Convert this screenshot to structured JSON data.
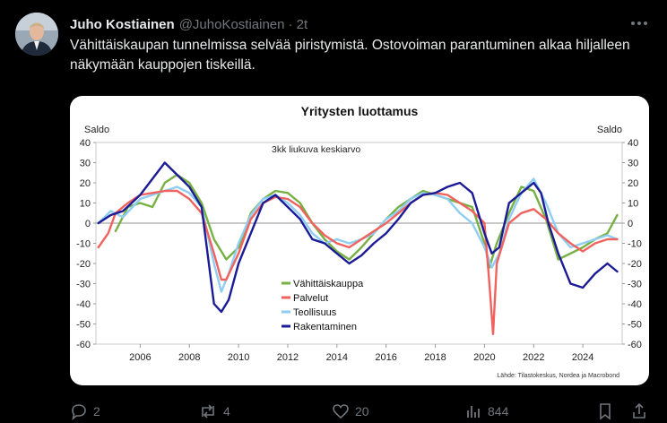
{
  "tweet": {
    "author_name": "Juho Kostiainen",
    "author_handle": "@JuhoKostiainen",
    "time": "· 2t",
    "text": "Vähittäiskaupan tunnelmissa selvää piristymistä. Ostovoiman parantuminen alkaa hiljalleen näkymään kauppojen tiskeillä."
  },
  "actions": {
    "replies": "2",
    "reposts": "4",
    "likes": "20",
    "views": "844"
  },
  "colors": {
    "background": "#000000",
    "text": "#e7e9ea",
    "muted": "#71767b",
    "retail": "#77b043",
    "services": "#f0625e",
    "industry": "#8fcdf3",
    "construction": "#1b1b96"
  },
  "icons": [
    "more-icon",
    "reply-icon",
    "repost-icon",
    "like-icon",
    "views-icon",
    "bookmark-icon",
    "share-icon"
  ],
  "chart_data": {
    "type": "line",
    "title": "Yritysten luottamus",
    "annotation": "3kk liukuva keskiarvo",
    "ylabel_left": "Saldo",
    "ylabel_right": "Saldo",
    "source": "Lähde: Tilastokeskus, Nordea ja Macrobond",
    "ylim": [
      -60,
      40
    ],
    "xlim": [
      2004.2,
      2025.6
    ],
    "yticks": [
      40,
      30,
      20,
      10,
      0,
      -10,
      -20,
      -30,
      -40,
      -50,
      -60
    ],
    "xticks": [
      "2006",
      "2008",
      "2010",
      "2012",
      "2014",
      "2016",
      "2018",
      "2020",
      "2022",
      "2024"
    ],
    "legend_position": "center",
    "series": [
      {
        "name": "Vähittäiskauppa",
        "color": "#77b043",
        "x": [
          2005.0,
          2005.5,
          2006.0,
          2006.5,
          2007.0,
          2007.5,
          2008.0,
          2008.5,
          2009.0,
          2009.5,
          2010.0,
          2010.5,
          2011.0,
          2011.5,
          2012.0,
          2012.5,
          2013.0,
          2013.5,
          2014.0,
          2014.5,
          2015.0,
          2015.5,
          2016.0,
          2016.5,
          2017.0,
          2017.5,
          2018.0,
          2018.5,
          2019.0,
          2019.5,
          2020.0,
          2020.2,
          2020.5,
          2021.0,
          2021.5,
          2022.0,
          2022.5,
          2023.0,
          2023.5,
          2024.0,
          2024.5,
          2025.0,
          2025.4
        ],
        "y": [
          -4,
          8,
          10,
          8,
          20,
          24,
          20,
          10,
          -8,
          -18,
          -12,
          5,
          12,
          16,
          15,
          10,
          0,
          -8,
          -14,
          -18,
          -12,
          -5,
          2,
          8,
          12,
          16,
          14,
          12,
          10,
          8,
          -10,
          -22,
          -10,
          5,
          18,
          16,
          2,
          -18,
          -15,
          -12,
          -8,
          -5,
          4
        ]
      },
      {
        "name": "Palvelut",
        "color": "#f0625e",
        "x": [
          2004.3,
          2004.7,
          2005.0,
          2005.5,
          2006.0,
          2006.5,
          2007.0,
          2007.5,
          2008.0,
          2008.5,
          2009.0,
          2009.3,
          2009.5,
          2010.0,
          2010.5,
          2011.0,
          2011.5,
          2012.0,
          2012.5,
          2013.0,
          2013.5,
          2014.0,
          2014.5,
          2015.0,
          2015.5,
          2016.0,
          2016.5,
          2017.0,
          2017.5,
          2018.0,
          2018.5,
          2019.0,
          2019.5,
          2020.0,
          2020.2,
          2020.35,
          2020.5,
          2021.0,
          2021.5,
          2022.0,
          2022.5,
          2023.0,
          2023.5,
          2024.0,
          2024.5,
          2025.0,
          2025.4
        ],
        "y": [
          -12,
          -5,
          5,
          10,
          14,
          15,
          16,
          16,
          12,
          5,
          -15,
          -28,
          -28,
          -15,
          2,
          10,
          13,
          12,
          8,
          0,
          -6,
          -10,
          -12,
          -8,
          -4,
          0,
          5,
          10,
          14,
          15,
          14,
          10,
          6,
          0,
          -30,
          -55,
          -20,
          0,
          5,
          7,
          2,
          -5,
          -10,
          -14,
          -10,
          -8,
          -8
        ]
      },
      {
        "name": "Teollisuus",
        "color": "#8fcdf3",
        "x": [
          2004.3,
          2004.8,
          2005.3,
          2006.0,
          2006.5,
          2007.0,
          2007.5,
          2008.0,
          2008.5,
          2009.0,
          2009.3,
          2009.6,
          2010.0,
          2010.5,
          2011.0,
          2011.5,
          2012.0,
          2012.5,
          2013.0,
          2013.5,
          2014.0,
          2014.5,
          2015.0,
          2015.5,
          2016.0,
          2016.5,
          2017.0,
          2017.5,
          2018.0,
          2018.5,
          2019.0,
          2019.5,
          2020.0,
          2020.3,
          2020.6,
          2021.0,
          2021.5,
          2022.0,
          2022.5,
          2023.0,
          2023.5,
          2024.0,
          2024.5,
          2025.0,
          2025.4
        ],
        "y": [
          0,
          6,
          3,
          12,
          14,
          16,
          18,
          15,
          8,
          -20,
          -34,
          -25,
          -10,
          4,
          12,
          14,
          10,
          4,
          -5,
          -10,
          -8,
          -10,
          -8,
          -5,
          2,
          6,
          12,
          15,
          14,
          12,
          5,
          0,
          -12,
          -22,
          -15,
          2,
          15,
          22,
          10,
          -5,
          -12,
          -10,
          -8,
          -6,
          -8
        ]
      },
      {
        "name": "Rakentaminen",
        "color": "#1b1b96",
        "x": [
          2004.3,
          2004.8,
          2005.3,
          2006.0,
          2006.5,
          2007.0,
          2007.5,
          2008.0,
          2008.5,
          2009.0,
          2009.3,
          2009.6,
          2010.0,
          2010.5,
          2011.0,
          2011.5,
          2012.0,
          2012.5,
          2013.0,
          2013.5,
          2014.0,
          2014.5,
          2015.0,
          2015.5,
          2016.0,
          2016.5,
          2017.0,
          2017.5,
          2018.0,
          2018.5,
          2019.0,
          2019.5,
          2020.0,
          2020.3,
          2020.6,
          2021.0,
          2021.5,
          2022.0,
          2022.3,
          2022.6,
          2023.0,
          2023.5,
          2024.0,
          2024.5,
          2025.0,
          2025.4
        ],
        "y": [
          0,
          4,
          6,
          14,
          22,
          30,
          24,
          18,
          8,
          -40,
          -44,
          -38,
          -20,
          -5,
          10,
          14,
          8,
          2,
          -8,
          -10,
          -15,
          -20,
          -16,
          -10,
          -5,
          2,
          10,
          14,
          15,
          18,
          20,
          15,
          -5,
          -15,
          -12,
          10,
          15,
          20,
          15,
          0,
          -15,
          -30,
          -32,
          -25,
          -20,
          -24
        ]
      }
    ]
  }
}
